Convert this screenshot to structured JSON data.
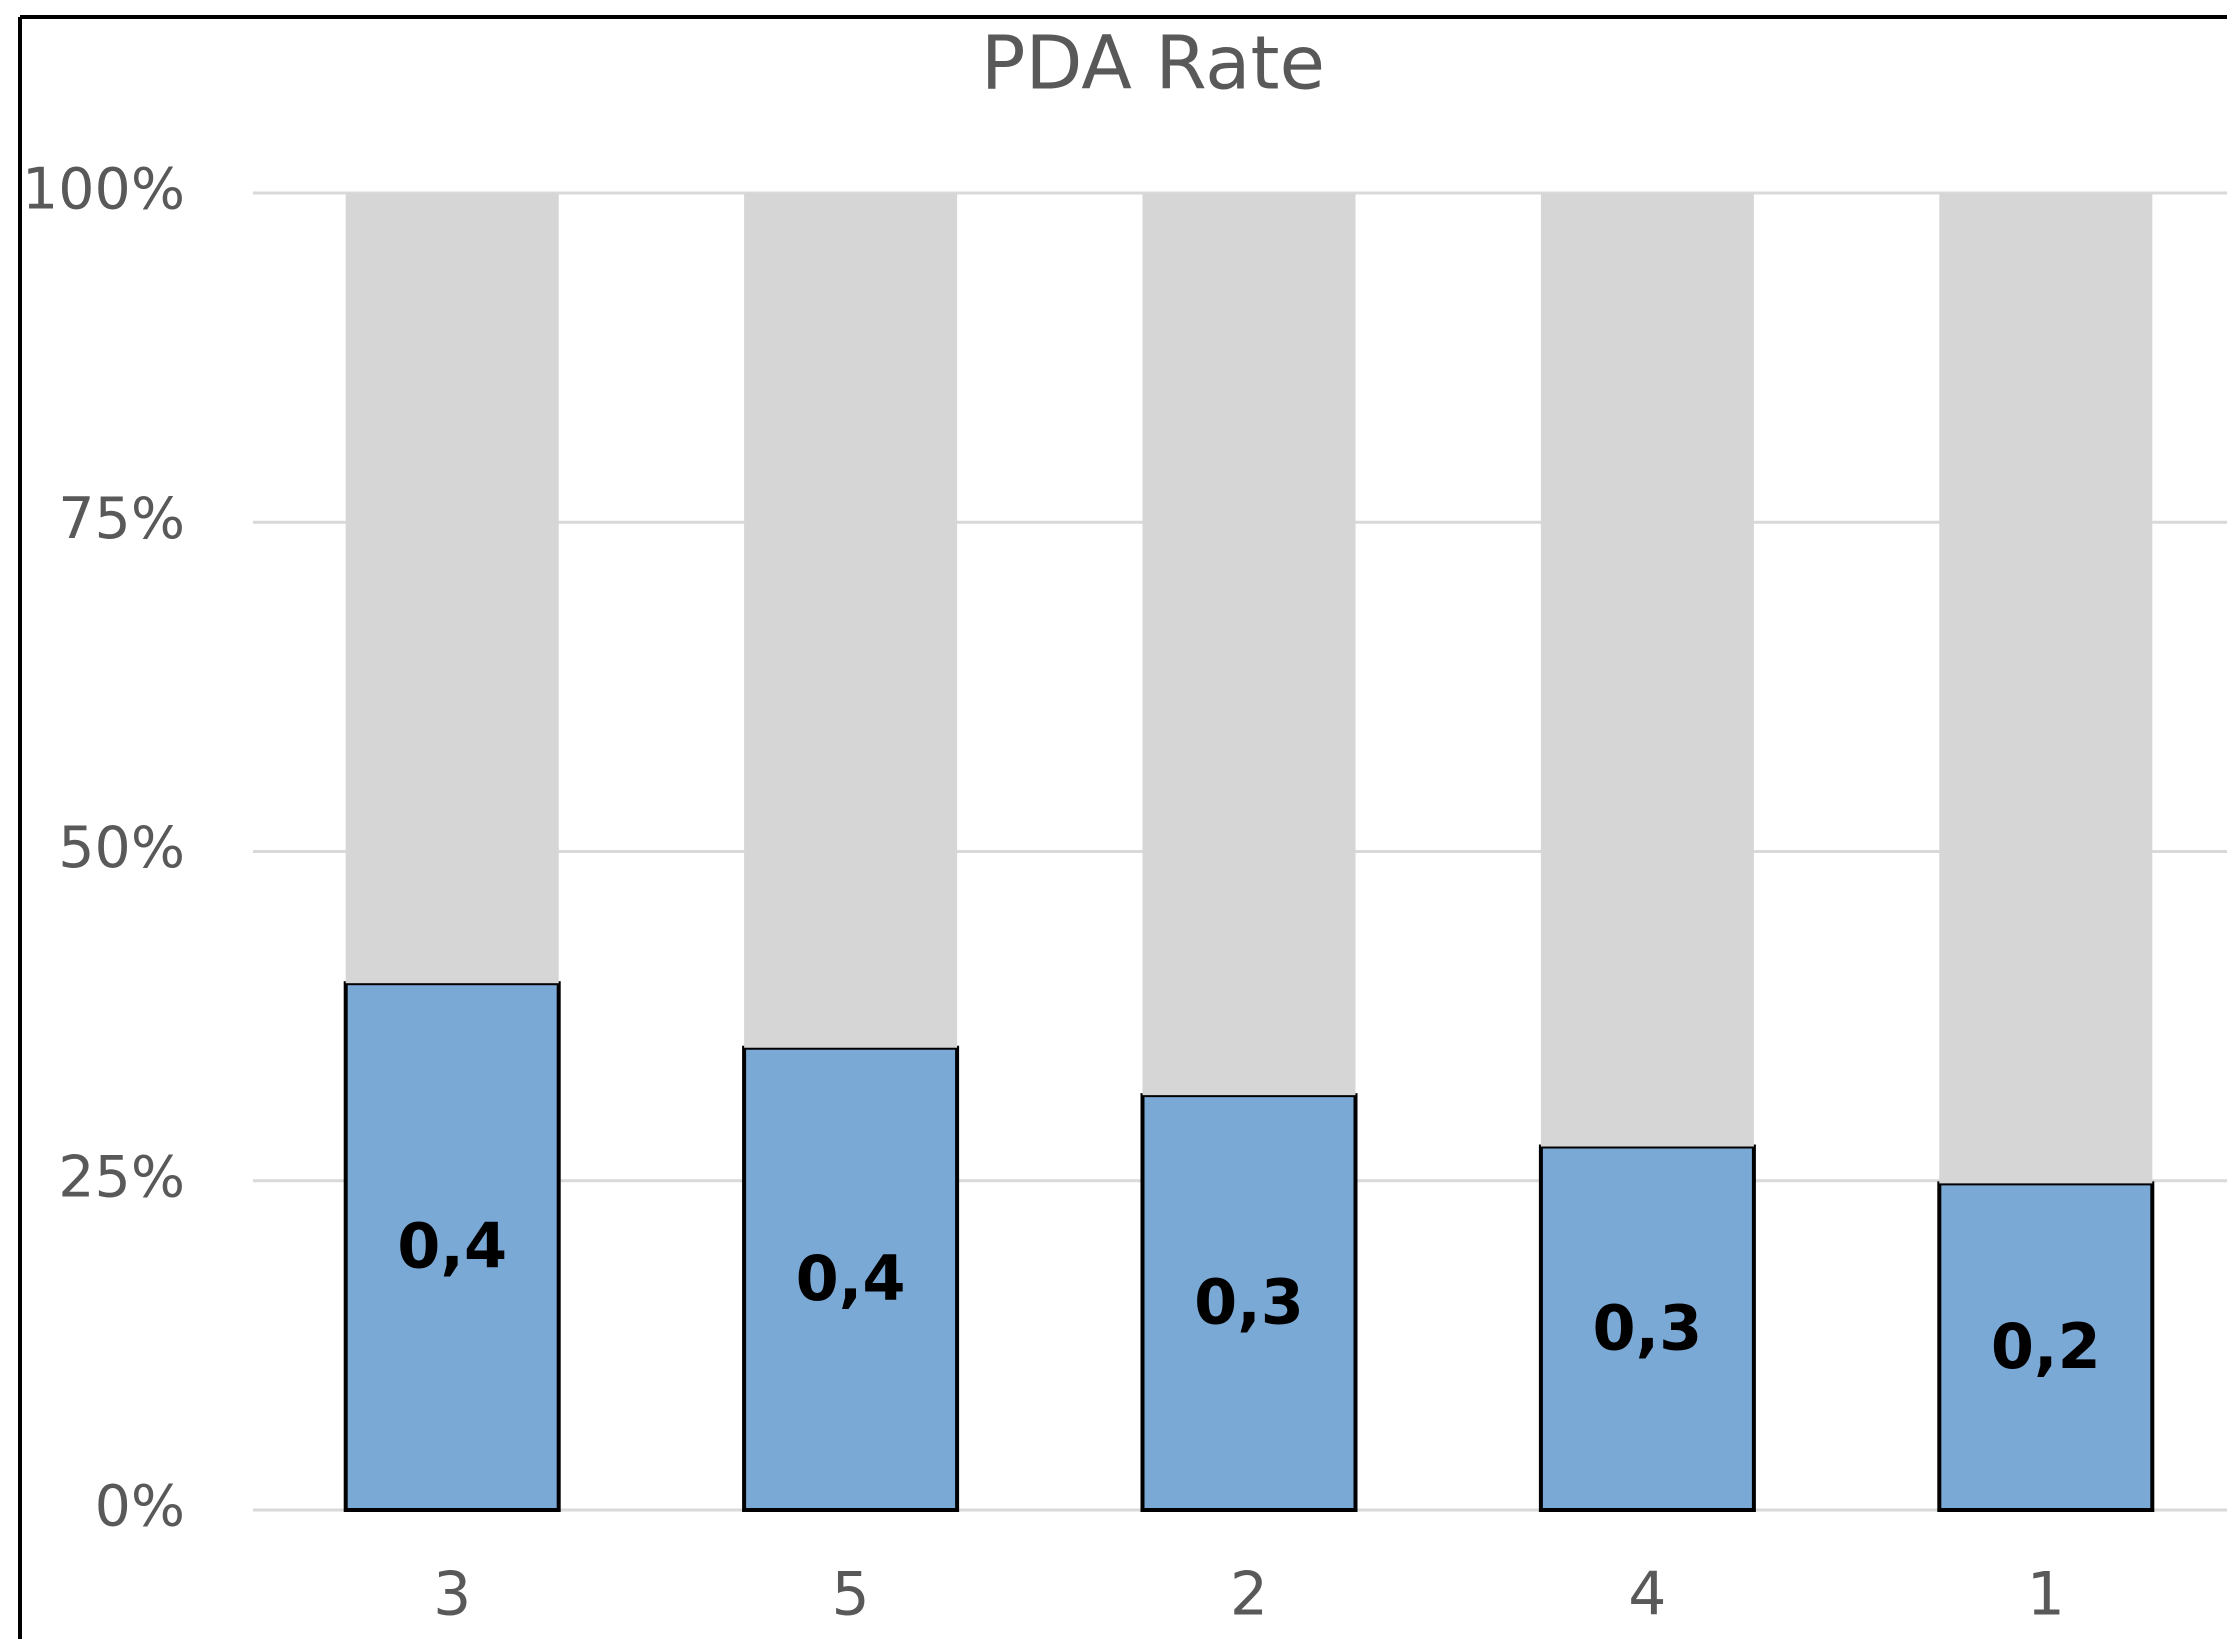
{
  "chart_data": {
    "type": "stacked_bar",
    "title": "PDA Rate",
    "categories": [
      "3",
      "5",
      "2",
      "4",
      "1"
    ],
    "series": [
      {
        "color": "#7ba9d6",
        "values": [
          40,
          35.1,
          31.5,
          27.6,
          24.8
        ],
        "value_labels": [
          "0,4",
          "0,4",
          "0,3",
          "0,3",
          "0,2"
        ]
      },
      {
        "color": "#d6d6d6",
        "values": [
          60,
          64.9,
          68.5,
          72.4,
          75.2
        ]
      }
    ],
    "ylim": [
      0,
      100
    ],
    "yticks": [
      {
        "value": 0,
        "label": "0%"
      },
      {
        "value": 25,
        "label": "25%"
      },
      {
        "value": 50,
        "label": "50%"
      },
      {
        "value": 75,
        "label": "75%"
      },
      {
        "value": 100,
        "label": "100%"
      }
    ],
    "grid": true
  }
}
